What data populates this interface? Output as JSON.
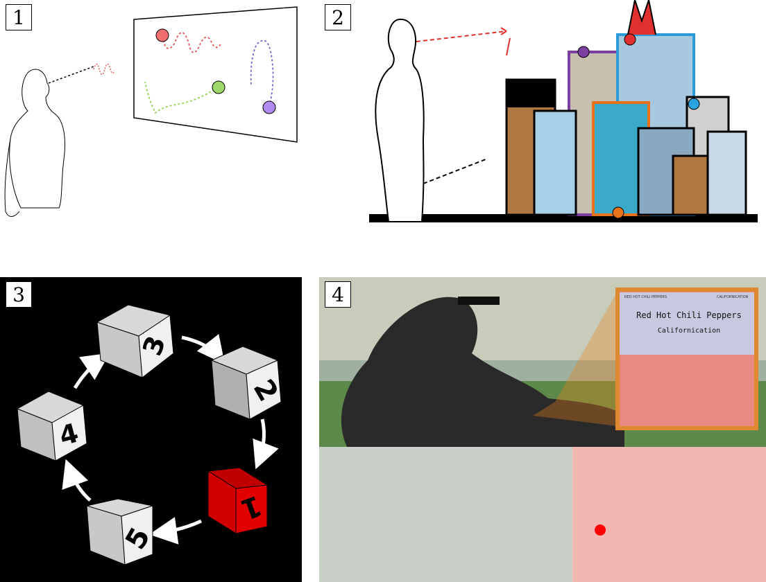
{
  "panels": [
    {
      "number": "1"
    },
    {
      "number": "2"
    },
    {
      "number": "3"
    },
    {
      "number": "4"
    }
  ],
  "dice": {
    "labels": [
      "3",
      "2",
      "1",
      "5",
      "4"
    ],
    "highlighted": "1",
    "highlight_color": "#e00000",
    "normal_color": "#e8e8e8"
  },
  "music_widget": {
    "artist": "Red Hot Chili Peppers",
    "track": "Californication",
    "header_left": "RED HOT CHILI PEPPERS",
    "header_right": "CALIFORNICATION"
  },
  "colors": {
    "orange": "#e8821e",
    "red": "#e03030",
    "green": "#8fd14f",
    "purple": "#a87de8",
    "blue": "#2aa3e0"
  }
}
